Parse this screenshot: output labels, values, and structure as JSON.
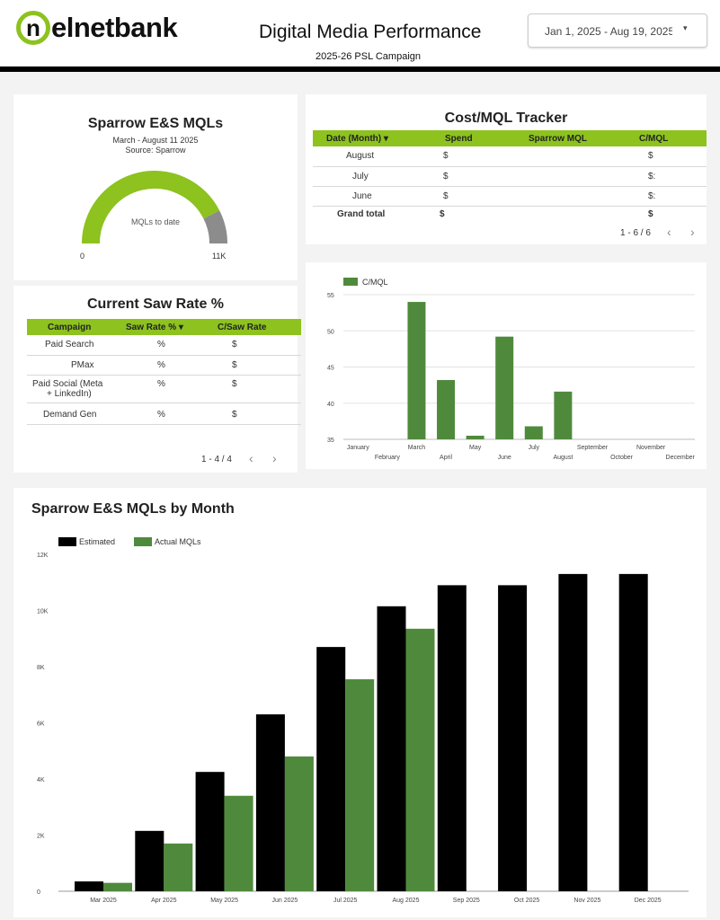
{
  "header": {
    "logo_mark": "n",
    "logo_text": "elnetbank",
    "title": "Digital Media Performance",
    "subtitle": "2025-26 PSL Campaign",
    "date_range": "Jan 1, 2025 - Aug 19, 2025",
    "date_caret": "▾"
  },
  "mql_gauge": {
    "title": "Sparrow E&S MQLs",
    "date_note": "March - August 11 2025",
    "source_note": "Source: Sparrow",
    "center_label": "MQLs to date",
    "min_label": "0",
    "max_label": "11K",
    "fill_fraction": 0.85,
    "fill_color": "#8dc21f",
    "rest_color": "#8c8c8c"
  },
  "saw_rate": {
    "title": "Current Saw Rate %",
    "columns": [
      "Campaign",
      "Saw Rate %",
      "C/Saw Rate"
    ],
    "sort_icon": "▾",
    "rows": [
      {
        "campaign": "Paid Search",
        "rate": "%",
        "cost": "$"
      },
      {
        "campaign": "PMax",
        "rate": "%",
        "cost": "$"
      },
      {
        "campaign_l1": "Paid Social (Meta",
        "campaign_l2": "+ LinkedIn)",
        "rate": "%",
        "cost": "$"
      },
      {
        "campaign": "Demand Gen",
        "rate": "%",
        "cost": "$"
      }
    ],
    "pager": "1 - 4 / 4",
    "prev": "‹",
    "next": "›"
  },
  "cost_tracker": {
    "title": "Cost/MQL Tracker",
    "columns": [
      "Date (Month)",
      "Spend",
      "Sparrow MQL",
      "C/MQL"
    ],
    "sort_icon": "▾",
    "rows": [
      {
        "month": "August",
        "spend": "$",
        "mql": "",
        "cmql": "$"
      },
      {
        "month": "July",
        "spend": "$",
        "mql": "",
        "cmql": "$:"
      },
      {
        "month": "June",
        "spend": "$",
        "mql": "",
        "cmql": "$:"
      }
    ],
    "total": {
      "month": "Grand total",
      "spend": "$",
      "mql": "",
      "cmql": "$"
    },
    "pager": "1 - 6 / 6",
    "prev": "‹",
    "next": "›"
  },
  "chart_data": [
    {
      "type": "bar",
      "series": [
        {
          "name": "C/MQL",
          "color": "#4f8a3c",
          "values": [
            null,
            null,
            54,
            43.2,
            35.5,
            49.2,
            36.8,
            41.6,
            null,
            null,
            null,
            null
          ]
        }
      ],
      "categories": [
        "January",
        "February",
        "March",
        "April",
        "May",
        "June",
        "July",
        "August",
        "September",
        "October",
        "November",
        "December"
      ],
      "yticks": [
        35,
        40,
        45,
        50,
        55
      ],
      "ylim": [
        35,
        55
      ],
      "grid": true,
      "legend": "top-left"
    },
    {
      "type": "bar",
      "title": "Sparrow E&S MQLs by Month",
      "categories": [
        "Mar 2025",
        "Apr 2025",
        "May 2025",
        "Jun 2025",
        "Jul 2025",
        "Aug 2025",
        "Sep 2025",
        "Oct 2025",
        "Nov 2025",
        "Dec 2025"
      ],
      "series": [
        {
          "name": "Estimated",
          "color": "#000000",
          "values": [
            350,
            2150,
            4250,
            6300,
            8700,
            10150,
            10900,
            10900,
            11300,
            11300
          ]
        },
        {
          "name": "Actual MQLs",
          "color": "#4f8a3c",
          "values": [
            300,
            1700,
            3400,
            4800,
            7550,
            9350,
            null,
            null,
            null,
            null
          ]
        }
      ],
      "yticks": [
        0,
        2000,
        4000,
        6000,
        8000,
        10000,
        12000
      ],
      "ytick_labels": [
        "0",
        "2K",
        "4K",
        "6K",
        "8K",
        "10K",
        "12K"
      ],
      "ylim": [
        0,
        12000
      ],
      "grid": false,
      "legend": "top-left"
    }
  ]
}
